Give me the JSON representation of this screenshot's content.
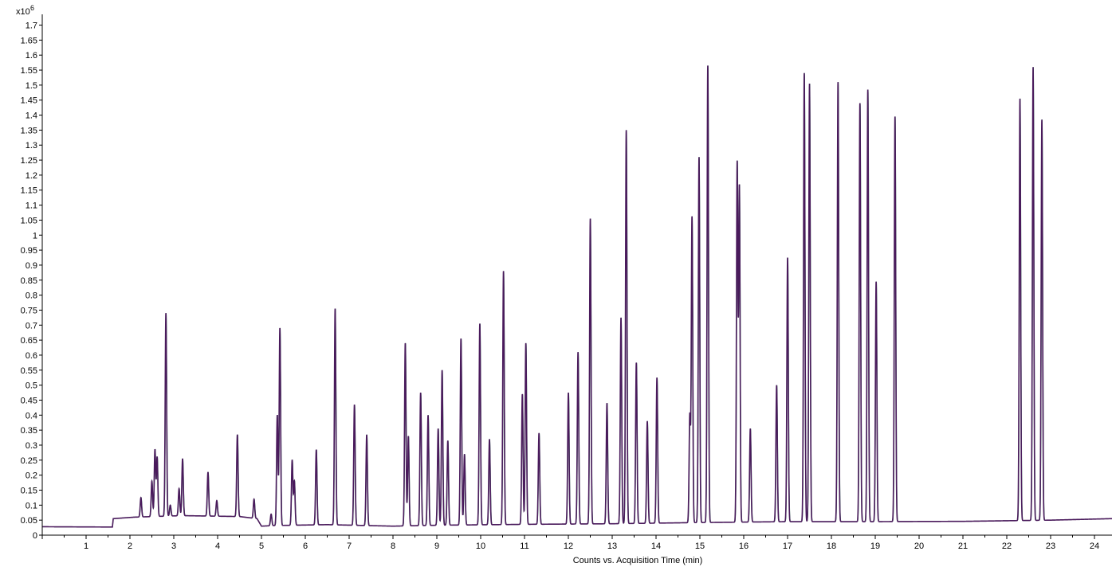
{
  "chart_data": {
    "type": "line",
    "title": "",
    "xlabel": "Counts vs. Acquisition Time (min)",
    "ylabel": "",
    "y_multiplier_label": "x10",
    "y_multiplier_exponent": "6",
    "xlim": [
      0,
      24.4
    ],
    "ylim": [
      0,
      1.72
    ],
    "x_ticks": [
      "1",
      "2",
      "3",
      "4",
      "5",
      "6",
      "7",
      "8",
      "9",
      "10",
      "11",
      "12",
      "13",
      "14",
      "15",
      "16",
      "17",
      "18",
      "19",
      "20",
      "21",
      "22",
      "23",
      "24"
    ],
    "y_ticks": [
      "0",
      "0.05",
      "0.1",
      "0.15",
      "0.2",
      "0.25",
      "0.3",
      "0.35",
      "0.4",
      "0.45",
      "0.5",
      "0.55",
      "0.6",
      "0.65",
      "0.7",
      "0.75",
      "0.8",
      "0.85",
      "0.9",
      "0.95",
      "1",
      "1.05",
      "1.1",
      "1.15",
      "1.2",
      "1.25",
      "1.3",
      "1.35",
      "1.4",
      "1.45",
      "1.5",
      "1.55",
      "1.6",
      "1.65",
      "1.7"
    ],
    "grid": false,
    "colors": {
      "trace_main": "#4a1a5c",
      "trace_overlay": "#2e8b57",
      "axis": "#000000"
    },
    "baseline": [
      [
        0.0,
        0.028
      ],
      [
        1.6,
        0.027
      ],
      [
        1.62,
        0.055
      ],
      [
        2.1,
        0.06
      ],
      [
        3.2,
        0.065
      ],
      [
        4.5,
        0.062
      ],
      [
        4.9,
        0.055
      ],
      [
        5.0,
        0.03
      ],
      [
        5.3,
        0.032
      ],
      [
        6.5,
        0.035
      ],
      [
        8.0,
        0.03
      ],
      [
        9.0,
        0.033
      ],
      [
        11.0,
        0.036
      ],
      [
        13.0,
        0.038
      ],
      [
        15.0,
        0.042
      ],
      [
        17.0,
        0.045
      ],
      [
        19.0,
        0.045
      ],
      [
        21.0,
        0.046
      ],
      [
        22.0,
        0.048
      ],
      [
        23.0,
        0.05
      ],
      [
        24.4,
        0.055
      ]
    ],
    "series": [
      {
        "values": [
          [
            2.25,
            0.125
          ],
          [
            2.5,
            0.18
          ],
          [
            2.57,
            0.285
          ],
          [
            2.62,
            0.26
          ],
          [
            2.82,
            0.74
          ],
          [
            2.92,
            0.1
          ],
          [
            3.12,
            0.155
          ],
          [
            3.2,
            0.255
          ],
          [
            3.78,
            0.21
          ],
          [
            3.98,
            0.115
          ],
          [
            4.45,
            0.335
          ],
          [
            4.83,
            0.12
          ],
          [
            5.22,
            0.07
          ],
          [
            5.36,
            0.4
          ],
          [
            5.42,
            0.69
          ],
          [
            5.7,
            0.25
          ],
          [
            5.75,
            0.18
          ],
          [
            6.25,
            0.285
          ],
          [
            6.68,
            0.755
          ],
          [
            7.12,
            0.435
          ],
          [
            7.4,
            0.335
          ],
          [
            8.28,
            0.64
          ],
          [
            8.35,
            0.33
          ],
          [
            8.63,
            0.475
          ],
          [
            8.8,
            0.4
          ],
          [
            9.03,
            0.355
          ],
          [
            9.12,
            0.55
          ],
          [
            9.25,
            0.315
          ],
          [
            9.55,
            0.655
          ],
          [
            9.63,
            0.27
          ],
          [
            9.98,
            0.705
          ],
          [
            10.2,
            0.32
          ],
          [
            10.52,
            0.88
          ],
          [
            10.95,
            0.47
          ],
          [
            11.03,
            0.64
          ],
          [
            11.33,
            0.34
          ],
          [
            12.0,
            0.475
          ],
          [
            12.22,
            0.61
          ],
          [
            12.5,
            1.055
          ],
          [
            12.88,
            0.44
          ],
          [
            13.2,
            0.725
          ],
          [
            13.32,
            1.35
          ],
          [
            13.55,
            0.575
          ],
          [
            13.8,
            0.38
          ],
          [
            14.02,
            0.525
          ],
          [
            14.77,
            0.4
          ],
          [
            14.82,
            1.06
          ],
          [
            14.98,
            1.26
          ],
          [
            15.18,
            1.565
          ],
          [
            15.85,
            1.24
          ],
          [
            15.9,
            1.16
          ],
          [
            16.15,
            0.355
          ],
          [
            16.75,
            0.5
          ],
          [
            17.0,
            0.925
          ],
          [
            17.38,
            1.54
          ],
          [
            17.5,
            1.505
          ],
          [
            18.15,
            1.51
          ],
          [
            18.65,
            1.44
          ],
          [
            18.83,
            1.485
          ],
          [
            19.02,
            0.845
          ],
          [
            19.45,
            1.395
          ],
          [
            22.3,
            1.455
          ],
          [
            22.6,
            1.56
          ],
          [
            22.8,
            1.385
          ]
        ]
      }
    ],
    "annotations": []
  }
}
